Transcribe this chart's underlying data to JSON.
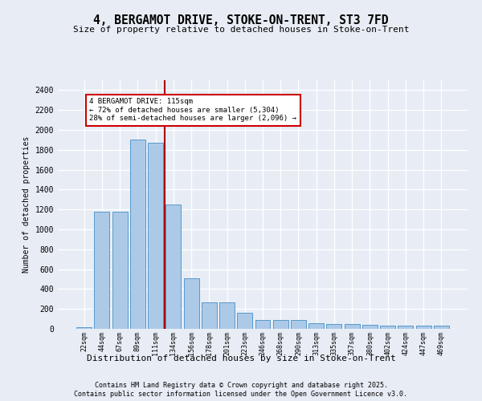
{
  "title": "4, BERGAMOT DRIVE, STOKE-ON-TRENT, ST3 7FD",
  "subtitle": "Size of property relative to detached houses in Stoke-on-Trent",
  "xlabel": "Distribution of detached houses by size in Stoke-on-Trent",
  "ylabel": "Number of detached properties",
  "categories": [
    "22sqm",
    "44sqm",
    "67sqm",
    "89sqm",
    "111sqm",
    "134sqm",
    "156sqm",
    "178sqm",
    "201sqm",
    "223sqm",
    "246sqm",
    "268sqm",
    "290sqm",
    "313sqm",
    "335sqm",
    "357sqm",
    "380sqm",
    "402sqm",
    "424sqm",
    "447sqm",
    "469sqm"
  ],
  "values": [
    20,
    1175,
    1175,
    1900,
    1870,
    1250,
    510,
    270,
    270,
    160,
    90,
    90,
    90,
    55,
    50,
    45,
    40,
    35,
    35,
    35,
    35
  ],
  "bar_color": "#adc9e8",
  "bar_edge_color": "#5599cc",
  "vline_color": "#aa0000",
  "annotation_text": "4 BERGAMOT DRIVE: 115sqm\n← 72% of detached houses are smaller (5,304)\n28% of semi-detached houses are larger (2,096) →",
  "annotation_box_color": "#ffffff",
  "annotation_box_edge": "#cc0000",
  "footer1": "Contains HM Land Registry data © Crown copyright and database right 2025.",
  "footer2": "Contains public sector information licensed under the Open Government Licence v3.0.",
  "bg_color": "#e8edf5",
  "plot_bg_color": "#e8edf5",
  "ylim": [
    0,
    2500
  ],
  "yticks": [
    0,
    200,
    400,
    600,
    800,
    1000,
    1200,
    1400,
    1600,
    1800,
    2000,
    2200,
    2400
  ]
}
